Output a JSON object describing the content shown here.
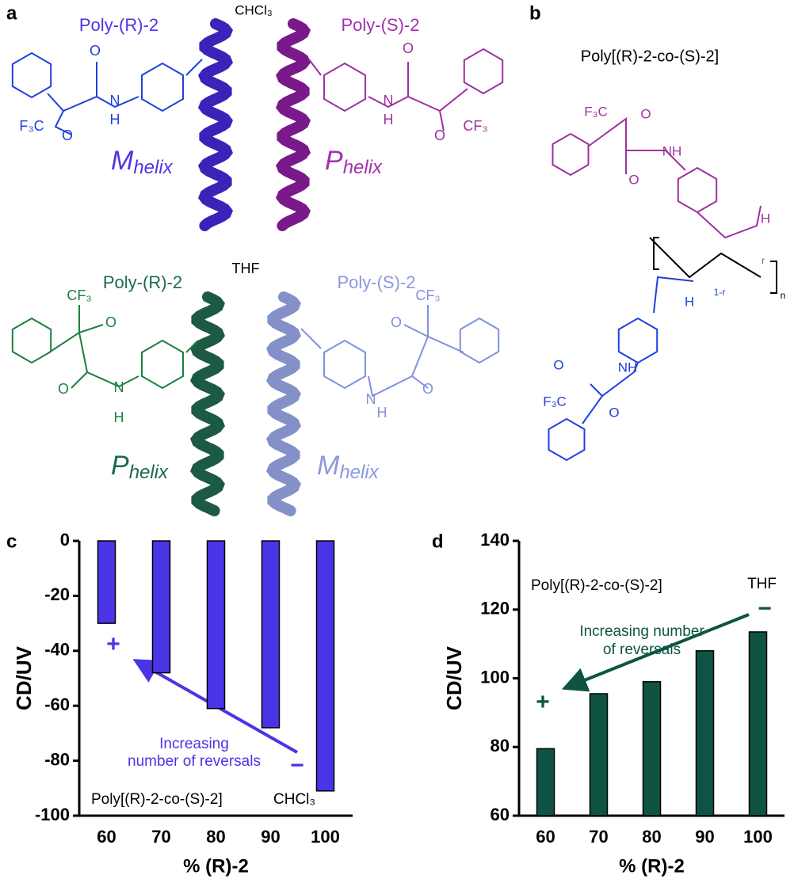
{
  "figure": {
    "panel_labels": [
      "a",
      "b",
      "c",
      "d"
    ],
    "solvents": [
      "CHCl₃",
      "THF"
    ],
    "polymers": [
      {
        "name": "Poly-(R)-2",
        "helix": "M",
        "sub": "helix"
      },
      {
        "name": "Poly-(S)-2",
        "helix": "P",
        "sub": "helix"
      },
      {
        "name": "Poly-(R)-2",
        "helix": "P",
        "sub": "helix"
      },
      {
        "name": "Poly-(S)-2",
        "helix": "M",
        "sub": "helix"
      }
    ],
    "structures": [
      {
        "atoms": [
          "O",
          "N",
          "H",
          "F₃C",
          "O"
        ]
      },
      {
        "atoms": [
          "O",
          "N",
          "H",
          "O",
          "CF₃"
        ]
      },
      {
        "atoms": [
          "CF₃",
          "O",
          "O",
          "N",
          "H"
        ]
      },
      {
        "atoms": [
          "N",
          "H",
          "O",
          "O",
          "CF₃"
        ]
      }
    ],
    "panel_b": {
      "title": "Poly[(R)-2-co-(S)-2]",
      "atoms": [
        "F₃C",
        "O",
        "NH",
        "O",
        "H",
        "H",
        "NH",
        "O",
        "F₃C",
        "O",
        "1-r",
        "r",
        "n"
      ]
    }
  },
  "chart_data": [
    {
      "type": "bar",
      "ylabel": "CD/UV",
      "xlabel": "% (R)-2",
      "categories": [
        "60",
        "70",
        "80",
        "90",
        "100"
      ],
      "values": [
        -30,
        -48,
        -61,
        -68,
        -91
      ],
      "color": "#4a35e6",
      "ylim": [
        -100,
        0
      ],
      "yticks": [
        0,
        -20,
        -40,
        -60,
        -80,
        -100
      ],
      "grid": false,
      "annotations": [
        "+",
        "Increasing",
        "number of reversals",
        "−",
        "Poly[(R)-2-co-(S)-2]",
        "CHCl₃"
      ]
    },
    {
      "type": "bar",
      "ylabel": "CD/UV",
      "xlabel": "% (R)-2",
      "categories": [
        "60",
        "70",
        "80",
        "90",
        "100"
      ],
      "values": [
        79.5,
        95.5,
        99,
        108,
        113.5
      ],
      "color": "#0f5443",
      "ylim": [
        60,
        140
      ],
      "yticks": [
        60,
        80,
        100,
        120,
        140
      ],
      "grid": false,
      "annotations": [
        "Poly[(R)-2-co-(S)-2]",
        "THF",
        "Increasing number",
        "of reversals",
        "+",
        "−"
      ]
    }
  ]
}
